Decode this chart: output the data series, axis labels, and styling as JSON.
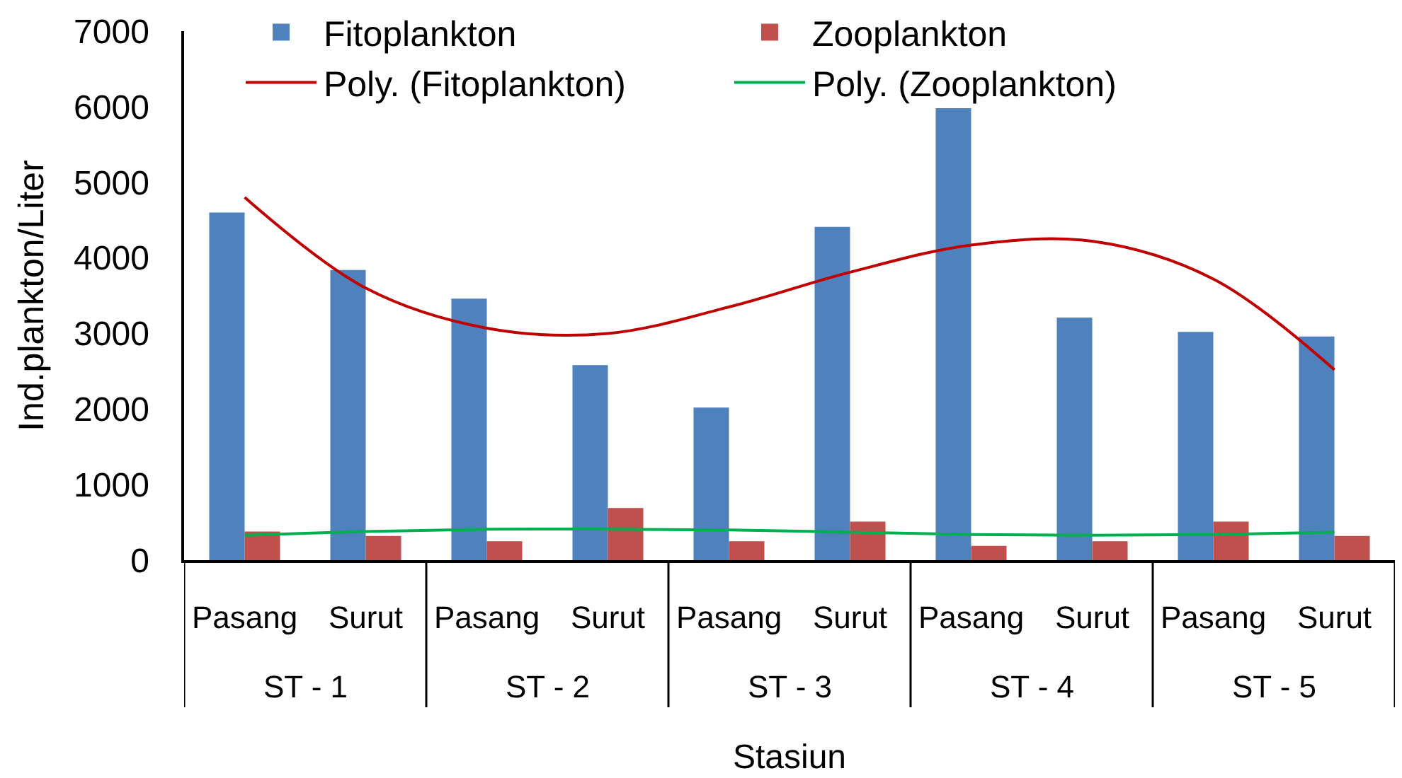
{
  "chart_data": {
    "type": "bar",
    "xlabel": "Stasiun",
    "ylabel": "Ind.plankton/Liter",
    "categories": [
      "Pasang",
      "Surut",
      "Pasang",
      "Surut",
      "Pasang",
      "Surut",
      "Pasang",
      "Surut",
      "Pasang",
      "Surut"
    ],
    "annotations": [
      "ST - 1",
      "ST - 2",
      "ST - 3",
      "ST - 4",
      "ST - 5"
    ],
    "series": [
      {
        "name": "Fitoplankton",
        "color": "#4f81bd",
        "values": [
          4600,
          3840,
          3460,
          2580,
          2020,
          4410,
          5980,
          3210,
          3020,
          2960
        ]
      },
      {
        "name": "Zooplankton",
        "color": "#c0504d",
        "values": [
          380,
          320,
          250,
          690,
          250,
          510,
          190,
          250,
          510,
          320
        ]
      },
      {
        "name": "Poly. (Fitoplankton)",
        "type": "line",
        "color": "#c00000",
        "values": [
          4800,
          3600,
          3070,
          3000,
          3350,
          3810,
          4170,
          4220,
          3720,
          2520
        ]
      },
      {
        "name": "Poly. (Zooplankton)",
        "type": "line",
        "color": "#00b050",
        "values": [
          330,
          380,
          410,
          410,
          400,
          370,
          340,
          330,
          340,
          370
        ]
      }
    ],
    "ylim": [
      0,
      7000
    ],
    "yticks": [
      0,
      1000,
      2000,
      3000,
      4000,
      5000,
      6000,
      7000
    ],
    "grid": false,
    "legend": "top",
    "marker": "none",
    "line_style": "solid"
  }
}
